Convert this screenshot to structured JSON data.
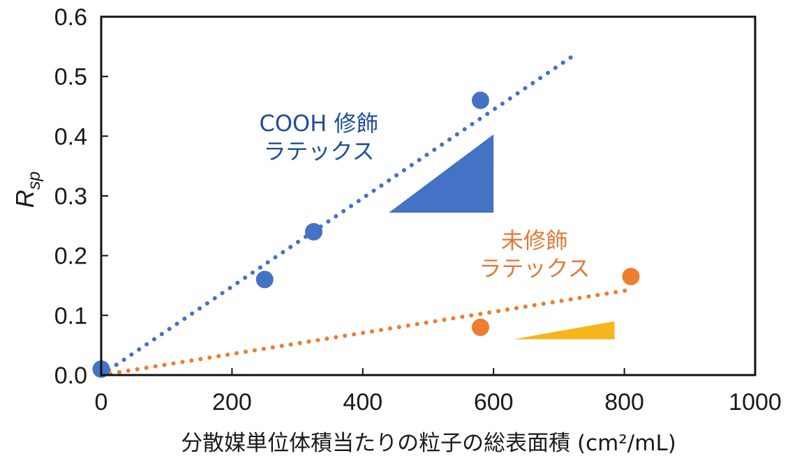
{
  "chart_data": {
    "type": "scatter",
    "xlabel": "分散媒単位体積当たりの粒子の総表面積 (cm²/mL)",
    "ylabel_main": "R",
    "ylabel_sub": "sp",
    "xlim": [
      0,
      1000
    ],
    "ylim": [
      0,
      0.6
    ],
    "x_ticks": [
      0,
      200,
      400,
      600,
      800,
      1000
    ],
    "x_tick_labels": [
      "0",
      "200",
      "400",
      "600",
      "800",
      "1000"
    ],
    "y_ticks": [
      0,
      0.1,
      0.2,
      0.3,
      0.4,
      0.5,
      0.6
    ],
    "y_tick_labels": [
      "0.0",
      "0.1",
      "0.2",
      "0.3",
      "0.4",
      "0.5",
      "0.6"
    ],
    "grid": false,
    "series": [
      {
        "name": "COOH 修飾ラテックス",
        "color": "#4472c4",
        "points": [
          {
            "x": 0,
            "y": 0.01
          },
          {
            "x": 250,
            "y": 0.16
          },
          {
            "x": 325,
            "y": 0.24
          },
          {
            "x": 580,
            "y": 0.46
          }
        ],
        "trendline": {
          "x0": 0,
          "y0": 0.0,
          "x1": 725,
          "y1": 0.537
        }
      },
      {
        "name": "未修飾ラテックス",
        "color": "#ed7d31",
        "points": [
          {
            "x": 580,
            "y": 0.08
          },
          {
            "x": 810,
            "y": 0.165
          }
        ],
        "trendline": {
          "x0": 0,
          "y0": 0.0,
          "x1": 810,
          "y1": 0.143
        }
      }
    ],
    "slope_triangles": [
      {
        "series": "COOH 修飾ラテックス",
        "color": "#4472c4",
        "x_start": 440,
        "x_end": 600,
        "y_base": 0.272,
        "y_top": 0.403
      },
      {
        "series": "未修飾ラテックス",
        "color": "#f5b51c",
        "x_start": 630,
        "x_end": 785,
        "y_base": 0.06,
        "y_top": 0.09
      }
    ],
    "annotations": [
      {
        "series": "COOH 修飾ラテックス",
        "lines": [
          "COOH 修飾",
          "ラテックス"
        ],
        "color": "#1f4e96"
      },
      {
        "series": "未修飾ラテックス",
        "lines": [
          "未修飾",
          "ラテックス"
        ],
        "color": "#e07b39"
      }
    ]
  }
}
